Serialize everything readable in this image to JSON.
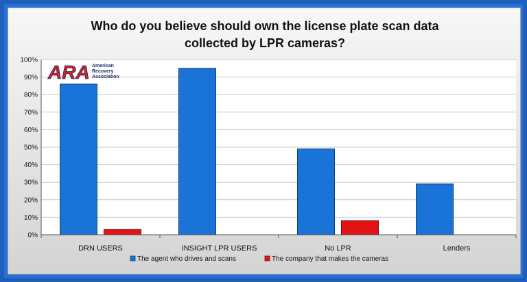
{
  "colors": {
    "series1": "#1a73d6",
    "series2": "#e41414",
    "series1_stroke": "#0d3f80",
    "series2_stroke": "#7a0a0a",
    "logo_red": "#d32020",
    "logo_navy": "#1d2b6b"
  },
  "logo": {
    "letters": "ARA",
    "line1": "American",
    "line2": "Recovery",
    "line3": "Association"
  },
  "chart_data": {
    "type": "bar",
    "title": "Who do you believe should own the license plate scan data collected by LPR cameras?",
    "title_lines": [
      "Who do you believe should own the license plate scan data",
      "collected by LPR cameras?"
    ],
    "xlabel": "",
    "ylabel": "",
    "ylim": [
      0,
      100
    ],
    "yticks": [
      "0%",
      "10%",
      "20%",
      "30%",
      "40%",
      "50%",
      "60%",
      "70%",
      "80%",
      "90%",
      "100%"
    ],
    "grid": true,
    "legend_position": "bottom",
    "categories": [
      "DRN USERS",
      "INSIGHT LPR USERS",
      "No LPR",
      "Lenders"
    ],
    "series": [
      {
        "name": "The agent who drives and scans",
        "values": [
          86,
          95,
          49,
          29
        ]
      },
      {
        "name": "The company that makes the cameras",
        "values": [
          3,
          0,
          8,
          0
        ]
      }
    ]
  }
}
